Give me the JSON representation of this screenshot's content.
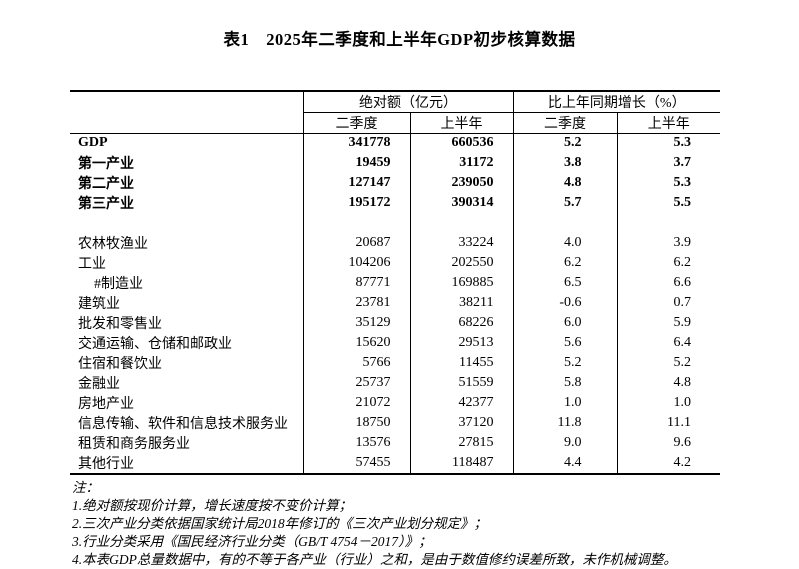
{
  "title": "表1　2025年二季度和上半年GDP初步核算数据",
  "table": {
    "group_headers": [
      "绝对额（亿元）",
      "比上年同期增长（%）"
    ],
    "sub_headers": [
      "二季度",
      "上半年",
      "二季度",
      "上半年"
    ],
    "rows": [
      {
        "label": "GDP",
        "bold": true,
        "values": [
          "341778",
          "660536",
          "5.2",
          "5.3"
        ]
      },
      {
        "label": "第一产业",
        "bold": true,
        "values": [
          "19459",
          "31172",
          "3.8",
          "3.7"
        ]
      },
      {
        "label": "第二产业",
        "bold": true,
        "values": [
          "127147",
          "239050",
          "4.8",
          "5.3"
        ]
      },
      {
        "label": "第三产业",
        "bold": true,
        "values": [
          "195172",
          "390314",
          "5.7",
          "5.5"
        ]
      },
      {
        "label": "",
        "blank": true,
        "values": [
          "",
          "",
          "",
          ""
        ]
      },
      {
        "label": "农林牧渔业",
        "values": [
          "20687",
          "33224",
          "4.0",
          "3.9"
        ]
      },
      {
        "label": "工业",
        "values": [
          "104206",
          "202550",
          "6.2",
          "6.2"
        ]
      },
      {
        "label": "#制造业",
        "indent": true,
        "values": [
          "87771",
          "169885",
          "6.5",
          "6.6"
        ]
      },
      {
        "label": "建筑业",
        "values": [
          "23781",
          "38211",
          "-0.6",
          "0.7"
        ]
      },
      {
        "label": "批发和零售业",
        "values": [
          "35129",
          "68226",
          "6.0",
          "5.9"
        ]
      },
      {
        "label": "交通运输、仓储和邮政业",
        "values": [
          "15620",
          "29513",
          "5.6",
          "6.4"
        ]
      },
      {
        "label": "住宿和餐饮业",
        "values": [
          "5766",
          "11455",
          "5.2",
          "5.2"
        ]
      },
      {
        "label": "金融业",
        "values": [
          "25737",
          "51559",
          "5.8",
          "4.8"
        ]
      },
      {
        "label": "房地产业",
        "values": [
          "21072",
          "42377",
          "1.0",
          "1.0"
        ]
      },
      {
        "label": "信息传输、软件和信息技术服务业",
        "values": [
          "18750",
          "37120",
          "11.8",
          "11.1"
        ]
      },
      {
        "label": "租赁和商务服务业",
        "values": [
          "13576",
          "27815",
          "9.0",
          "9.6"
        ]
      },
      {
        "label": "其他行业",
        "values": [
          "57455",
          "118487",
          "4.4",
          "4.2"
        ]
      }
    ]
  },
  "notes": {
    "heading": "注：",
    "items": [
      "1.绝对额按现价计算，增长速度按不变价计算；",
      "2.三次产业分类依据国家统计局2018年修订的《三次产业划分规定》；",
      "3.行业分类采用《国民经济行业分类（GB/T 4754－2017）》；",
      "4.本表GDP总量数据中，有的不等于各产业（行业）之和，是由于数值修约误差所致，未作机械调整。"
    ]
  }
}
